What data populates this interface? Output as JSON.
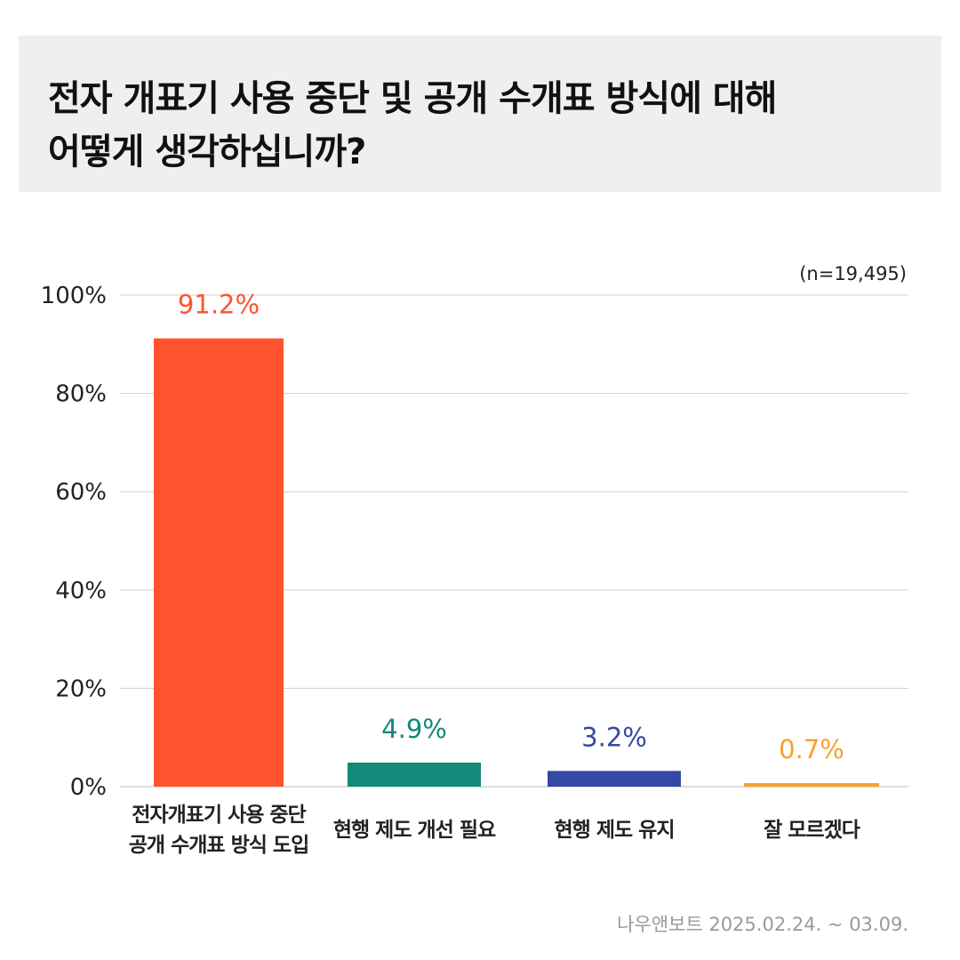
{
  "title": {
    "line1": "전자 개표기 사용 중단 및 공개 수개표 방식에 대해",
    "line2": "어떻게 생각하십니까?"
  },
  "sample_size": "(n=19,495)",
  "source": "나우앤보트 2025.02.24. ~ 03.09.",
  "chart_data": {
    "type": "bar",
    "categories": [
      [
        "전자개표기 사용 중단",
        "공개 수개표 방식 도입"
      ],
      [
        "현행 제도 개선 필요"
      ],
      [
        "현행 제도 유지"
      ],
      [
        "잘 모르겠다"
      ]
    ],
    "values": [
      91.2,
      4.9,
      3.2,
      0.7
    ],
    "value_labels": [
      "91.2%",
      "4.9%",
      "3.2%",
      "0.7%"
    ],
    "colors": [
      "#ff532f",
      "#13897a",
      "#3449a3",
      "#f7a12d"
    ],
    "ylim": [
      0,
      100
    ],
    "yticks": [
      0,
      20,
      40,
      60,
      80,
      100
    ],
    "ytick_labels": [
      "0%",
      "20%",
      "40%",
      "60%",
      "80%",
      "100%"
    ],
    "grid": true,
    "xlabel": "",
    "ylabel": ""
  }
}
